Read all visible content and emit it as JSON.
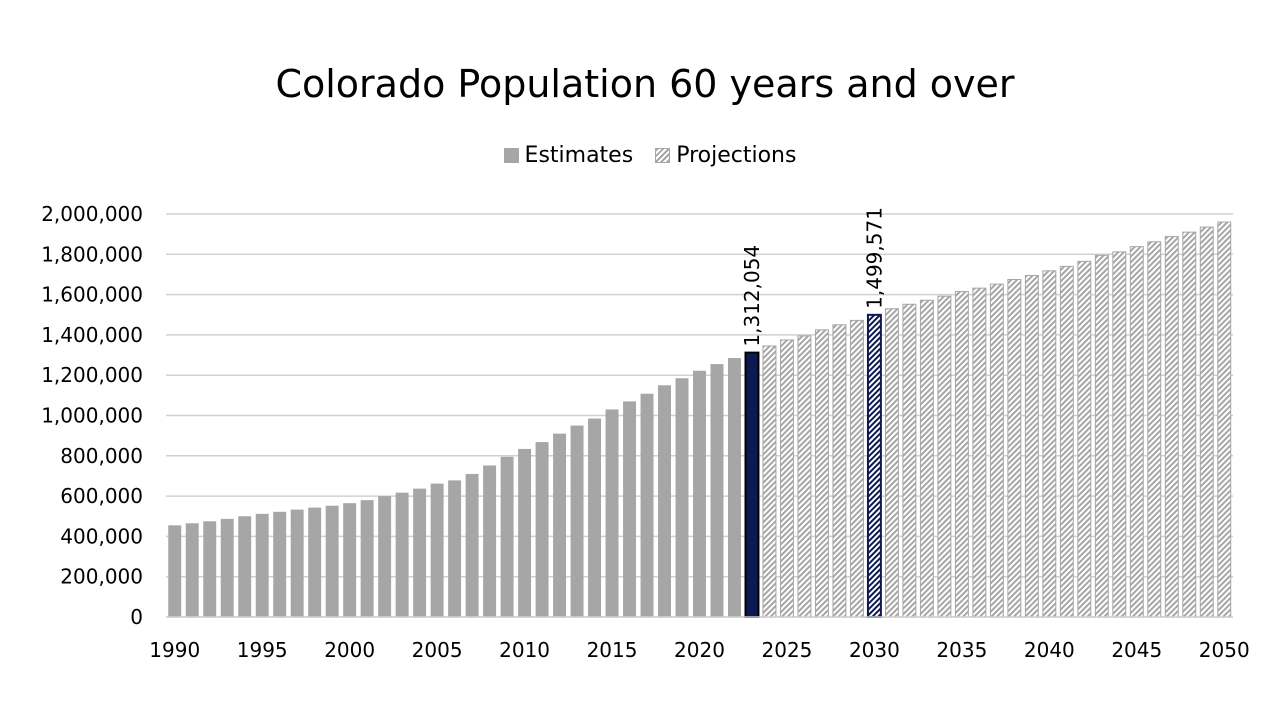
{
  "chart_data": {
    "type": "bar",
    "title": "Colorado Population 60 years and over",
    "legend": {
      "position": "top",
      "entries": [
        "Estimates",
        "Projections"
      ]
    },
    "xlabel": "",
    "ylabel": "",
    "ylim": [
      0,
      2000000
    ],
    "y_ticks": [
      "0",
      "200,000",
      "400,000",
      "600,000",
      "800,000",
      "1,000,000",
      "1,200,000",
      "1,400,000",
      "1,600,000",
      "1,800,000",
      "2,000,000"
    ],
    "x_tick_labels": [
      "1990",
      "1995",
      "2000",
      "2005",
      "2010",
      "2015",
      "2020",
      "2025",
      "2030",
      "2035",
      "2040",
      "2045",
      "2050"
    ],
    "grid": true,
    "series": [
      {
        "name": "Estimates",
        "style": "solid",
        "color": "#a6a6a6",
        "x": [
          1990,
          1991,
          1992,
          1993,
          1994,
          1995,
          1996,
          1997,
          1998,
          1999,
          2000,
          2001,
          2002,
          2003,
          2004,
          2005,
          2006,
          2007,
          2008,
          2009,
          2010,
          2011,
          2012,
          2013,
          2014,
          2015,
          2016,
          2017,
          2018,
          2019,
          2020,
          2021,
          2022,
          2023
        ],
        "values": [
          455000,
          465000,
          475000,
          487000,
          500000,
          512000,
          522000,
          533000,
          543000,
          552000,
          565000,
          580000,
          600000,
          617000,
          637000,
          662000,
          678000,
          710000,
          752000,
          795000,
          834000,
          868000,
          910000,
          950000,
          985000,
          1030000,
          1070000,
          1108000,
          1150000,
          1185000,
          1222000,
          1255000,
          1285000,
          1312054
        ]
      },
      {
        "name": "Projections",
        "style": "hatched",
        "color": "#a6a6a6",
        "x": [
          2024,
          2025,
          2026,
          2027,
          2028,
          2029,
          2030,
          2031,
          2032,
          2033,
          2034,
          2035,
          2036,
          2037,
          2038,
          2039,
          2040,
          2041,
          2042,
          2043,
          2044,
          2045,
          2046,
          2047,
          2048,
          2049,
          2050
        ],
        "values": [
          1345000,
          1375000,
          1395000,
          1425000,
          1450000,
          1472000,
          1499571,
          1530000,
          1552000,
          1572000,
          1592000,
          1615000,
          1632000,
          1652000,
          1675000,
          1695000,
          1718000,
          1740000,
          1765000,
          1795000,
          1812000,
          1838000,
          1862000,
          1888000,
          1910000,
          1935000,
          1960000
        ]
      }
    ],
    "highlights": [
      {
        "x": 2023,
        "value": 1312054,
        "label": "1,312,054",
        "fill": "#0b1a52",
        "style": "solid"
      },
      {
        "x": 2030,
        "value": 1499571,
        "label": "1,499,571",
        "fill": "#0b1a52",
        "style": "hatched"
      }
    ]
  }
}
